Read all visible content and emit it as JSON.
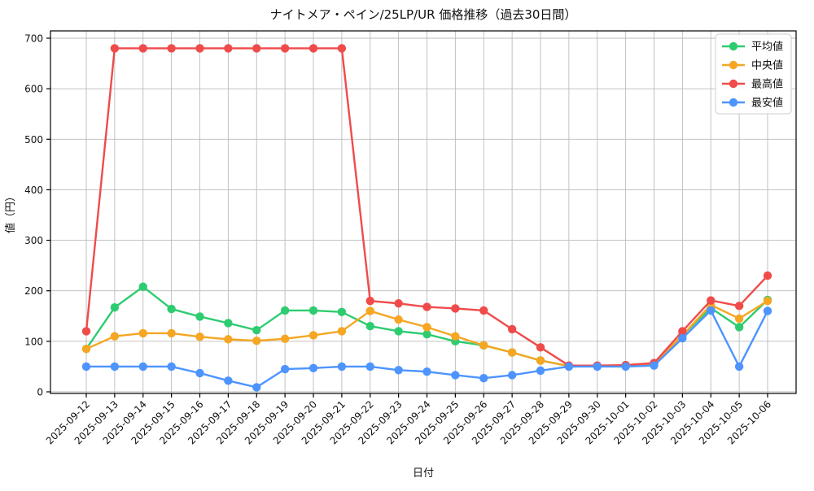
{
  "title_bar": {
    "title": "ナイトメア・ペイン/25LP/UR 価格推移（過去30日間）"
  },
  "chart_data": {
    "type": "line",
    "title": "ナイトメア・ペイン/25LP/UR 価格推移（過去30日間）",
    "xlabel": "日付",
    "ylabel": "値（円）",
    "ylim": [
      0,
      714
    ],
    "yticks": [
      0,
      100,
      200,
      300,
      400,
      500,
      600,
      700
    ],
    "grid": true,
    "legend_position": "upper right",
    "background": "#ffffff",
    "grid_color": "#bbbbbb",
    "axis_color": "#000000",
    "categories": [
      "2025-09-12",
      "2025-09-13",
      "2025-09-14",
      "2025-09-15",
      "2025-09-16",
      "2025-09-17",
      "2025-09-18",
      "2025-09-19",
      "2025-09-20",
      "2025-09-21",
      "2025-09-22",
      "2025-09-23",
      "2025-09-24",
      "2025-09-25",
      "2025-09-26",
      "2025-09-27",
      "2025-09-28",
      "2025-09-29",
      "2025-09-30",
      "2025-10-01",
      "2025-10-02",
      "2025-10-03",
      "2025-10-04",
      "2025-10-05",
      "2025-10-06"
    ],
    "series": [
      {
        "name": "平均値",
        "color": "#2ecc71",
        "values": [
          85,
          167,
          208,
          164,
          149,
          136,
          122,
          161,
          161,
          158,
          130,
          120,
          114,
          100,
          92,
          78,
          62,
          51,
          51,
          52,
          55,
          112,
          166,
          128,
          182
        ]
      },
      {
        "name": "中央値",
        "color": "#f5a623",
        "values": [
          85,
          110,
          116,
          116,
          109,
          104,
          101,
          105,
          112,
          120,
          160,
          143,
          128,
          110,
          92,
          78,
          62,
          51,
          51,
          52,
          55,
          112,
          172,
          145,
          180
        ]
      },
      {
        "name": "最高値",
        "color": "#f04b4b",
        "values": [
          120,
          680,
          680,
          680,
          680,
          680,
          680,
          680,
          680,
          680,
          180,
          175,
          168,
          165,
          161,
          124,
          88,
          52,
          52,
          53,
          57,
          120,
          181,
          170,
          230
        ]
      },
      {
        "name": "最安値",
        "color": "#4d94ff",
        "values": [
          50,
          50,
          50,
          50,
          37,
          22,
          9,
          45,
          47,
          50,
          50,
          43,
          40,
          33,
          27,
          33,
          42,
          50,
          50,
          50,
          52,
          106,
          161,
          50,
          160
        ]
      }
    ]
  }
}
